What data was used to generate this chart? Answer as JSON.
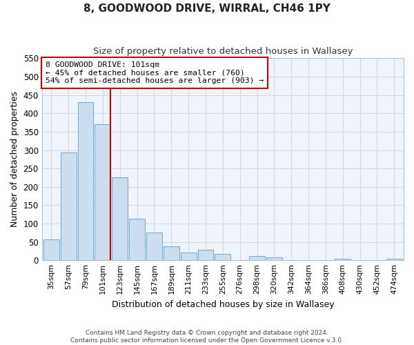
{
  "title": "8, GOODWOOD DRIVE, WIRRAL, CH46 1PY",
  "subtitle": "Size of property relative to detached houses in Wallasey",
  "xlabel": "Distribution of detached houses by size in Wallasey",
  "ylabel": "Number of detached properties",
  "bar_labels": [
    "35sqm",
    "57sqm",
    "79sqm",
    "101sqm",
    "123sqm",
    "145sqm",
    "167sqm",
    "189sqm",
    "211sqm",
    "233sqm",
    "255sqm",
    "276sqm",
    "298sqm",
    "320sqm",
    "342sqm",
    "364sqm",
    "386sqm",
    "408sqm",
    "430sqm",
    "452sqm",
    "474sqm"
  ],
  "bar_values": [
    57,
    293,
    430,
    370,
    226,
    113,
    76,
    38,
    22,
    29,
    18,
    0,
    11,
    9,
    0,
    0,
    0,
    5,
    0,
    0,
    5
  ],
  "bar_color": "#ccddf0",
  "bar_edge_color": "#6aaad4",
  "vline_color": "#cc0000",
  "annotation_title": "8 GOODWOOD DRIVE: 101sqm",
  "annotation_line1": "← 45% of detached houses are smaller (760)",
  "annotation_line2": "54% of semi-detached houses are larger (903) →",
  "annotation_box_color": "#ffffff",
  "annotation_box_edge": "#cc0000",
  "ylim": [
    0,
    550
  ],
  "yticks": [
    0,
    50,
    100,
    150,
    200,
    250,
    300,
    350,
    400,
    450,
    500,
    550
  ],
  "grid_color": "#ccd9ea",
  "footer_line1": "Contains HM Land Registry data © Crown copyright and database right 2024.",
  "footer_line2": "Contains public sector information licensed under the Open Government Licence v.3.0."
}
